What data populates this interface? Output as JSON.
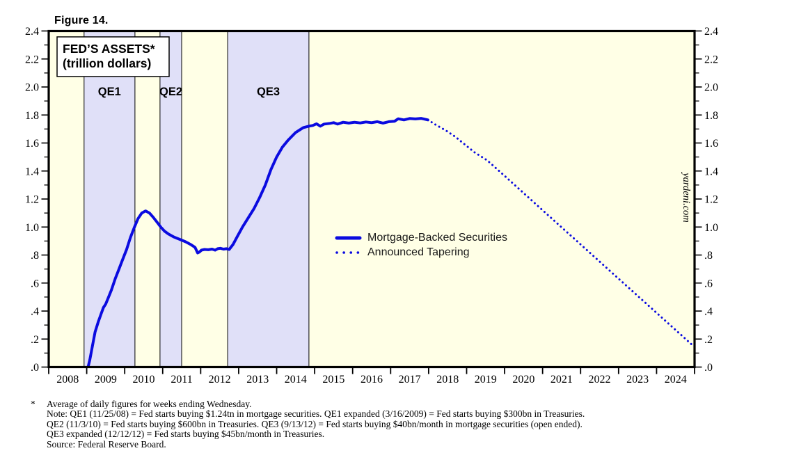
{
  "figure_label": "Figure 14.",
  "chart_data": {
    "type": "line",
    "title": "FED’S ASSETS*",
    "subtitle": "(trillion dollars)",
    "watermark": "yardeni.com",
    "ylim": [
      0,
      2.4
    ],
    "y_major_step": 0.2,
    "y_minor_step": 0.1,
    "y_tick_labels": [
      "2.4",
      "2.2",
      "2.0",
      "1.8",
      "1.6",
      "1.4",
      "1.2",
      "1.0",
      ".8",
      ".6",
      ".4",
      ".2",
      ".0"
    ],
    "x_range": [
      2008,
      2025
    ],
    "x_year_labels": [
      "2008",
      "2009",
      "2010",
      "2011",
      "2012",
      "2013",
      "2014",
      "2015",
      "2016",
      "2017",
      "2018",
      "2019",
      "2020",
      "2021",
      "2022",
      "2023",
      "2024"
    ],
    "grid": false,
    "legend_position": "inside-middle",
    "bands": [
      {
        "label": "QE1",
        "start": 2008.93,
        "end": 2010.27
      },
      {
        "label": "QE2",
        "start": 2010.93,
        "end": 2011.5
      },
      {
        "label": "QE3",
        "start": 2012.71,
        "end": 2014.85
      }
    ],
    "series": [
      {
        "name": "Mortgage-Backed Securities",
        "style": "solid",
        "points": [
          [
            2009.04,
            0.005
          ],
          [
            2009.08,
            0.05
          ],
          [
            2009.15,
            0.15
          ],
          [
            2009.22,
            0.25
          ],
          [
            2009.3,
            0.32
          ],
          [
            2009.38,
            0.38
          ],
          [
            2009.44,
            0.425
          ],
          [
            2009.5,
            0.45
          ],
          [
            2009.56,
            0.49
          ],
          [
            2009.65,
            0.55
          ],
          [
            2009.75,
            0.63
          ],
          [
            2009.85,
            0.7
          ],
          [
            2009.95,
            0.77
          ],
          [
            2010.05,
            0.84
          ],
          [
            2010.15,
            0.925
          ],
          [
            2010.25,
            0.995
          ],
          [
            2010.35,
            1.06
          ],
          [
            2010.45,
            1.1
          ],
          [
            2010.55,
            1.115
          ],
          [
            2010.65,
            1.1
          ],
          [
            2010.75,
            1.07
          ],
          [
            2010.85,
            1.035
          ],
          [
            2010.95,
            1.0
          ],
          [
            2011.05,
            0.97
          ],
          [
            2011.15,
            0.95
          ],
          [
            2011.3,
            0.928
          ],
          [
            2011.45,
            0.912
          ],
          [
            2011.6,
            0.895
          ],
          [
            2011.75,
            0.873
          ],
          [
            2011.85,
            0.855
          ],
          [
            2011.92,
            0.815
          ],
          [
            2011.97,
            0.822
          ],
          [
            2012.02,
            0.835
          ],
          [
            2012.1,
            0.84
          ],
          [
            2012.2,
            0.838
          ],
          [
            2012.3,
            0.842
          ],
          [
            2012.38,
            0.835
          ],
          [
            2012.45,
            0.845
          ],
          [
            2012.52,
            0.848
          ],
          [
            2012.6,
            0.842
          ],
          [
            2012.68,
            0.845
          ],
          [
            2012.75,
            0.84
          ],
          [
            2012.85,
            0.875
          ],
          [
            2012.95,
            0.925
          ],
          [
            2013.1,
            1.0
          ],
          [
            2013.25,
            1.065
          ],
          [
            2013.4,
            1.13
          ],
          [
            2013.55,
            1.21
          ],
          [
            2013.7,
            1.3
          ],
          [
            2013.85,
            1.41
          ],
          [
            2014.0,
            1.5
          ],
          [
            2014.15,
            1.57
          ],
          [
            2014.3,
            1.62
          ],
          [
            2014.5,
            1.675
          ],
          [
            2014.7,
            1.71
          ],
          [
            2014.85,
            1.72
          ],
          [
            2014.95,
            1.725
          ],
          [
            2015.05,
            1.737
          ],
          [
            2015.15,
            1.72
          ],
          [
            2015.25,
            1.735
          ],
          [
            2015.4,
            1.74
          ],
          [
            2015.5,
            1.745
          ],
          [
            2015.6,
            1.735
          ],
          [
            2015.75,
            1.748
          ],
          [
            2015.9,
            1.742
          ],
          [
            2016.05,
            1.748
          ],
          [
            2016.2,
            1.743
          ],
          [
            2016.35,
            1.75
          ],
          [
            2016.5,
            1.745
          ],
          [
            2016.65,
            1.752
          ],
          [
            2016.8,
            1.742
          ],
          [
            2016.95,
            1.752
          ],
          [
            2017.1,
            1.755
          ],
          [
            2017.2,
            1.773
          ],
          [
            2017.35,
            1.765
          ],
          [
            2017.5,
            1.775
          ],
          [
            2017.65,
            1.772
          ],
          [
            2017.8,
            1.776
          ],
          [
            2017.9,
            1.77
          ],
          [
            2017.98,
            1.765
          ]
        ]
      },
      {
        "name": "Announced Tapering",
        "style": "dotted",
        "points": [
          [
            2017.98,
            1.765
          ],
          [
            2018.2,
            1.728
          ],
          [
            2018.45,
            1.69
          ],
          [
            2018.7,
            1.645
          ],
          [
            2018.95,
            1.59
          ],
          [
            2019.2,
            1.535
          ],
          [
            2019.54,
            1.477
          ],
          [
            2020.0,
            1.365
          ],
          [
            2021.0,
            1.12
          ],
          [
            2022.0,
            0.876
          ],
          [
            2023.0,
            0.631
          ],
          [
            2024.0,
            0.387
          ],
          [
            2024.95,
            0.155
          ]
        ]
      }
    ],
    "colors": {
      "line": "#0b0be0",
      "band": "#e0e0f8",
      "plot_bg": "#ffffe6",
      "frame": "#000000"
    }
  },
  "footnotes": {
    "star": "*",
    "lines": [
      "Average of daily figures for weeks ending Wednesday.",
      "Note: QE1 (11/25/08) = Fed starts buying $1.24tn in mortgage securities. QE1 expanded (3/16/2009) = Fed starts buying $300bn in Treasuries.",
      "QE2 (11/3/10) = Fed starts buying $600bn in Treasuries. QE3 (9/13/12) = Fed starts buying $40bn/month in mortgage securities (open ended).",
      "QE3 expanded (12/12/12) = Fed starts buying $45bn/month in Treasuries.",
      "Source: Federal Reserve Board."
    ]
  }
}
